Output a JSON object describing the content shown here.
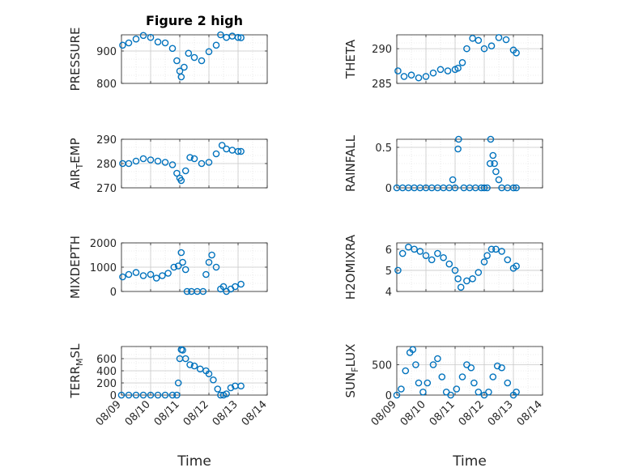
{
  "figure": {
    "title": "Figure 2 high",
    "xlabel": "Time",
    "xtick_labels": [
      "08/09",
      "08/10",
      "08/11",
      "08/12",
      "08/13",
      "08/14"
    ]
  },
  "colors": {
    "marker": "#0072bd",
    "axis": "#262626",
    "grid": "#dcdcdc"
  },
  "chart_data": [
    {
      "type": "scatter",
      "ylabel": "PRESSURE",
      "ylabel_sub": "",
      "xlim": [
        0,
        5
      ],
      "ylim": [
        800,
        950
      ],
      "yticks": [
        800,
        900
      ],
      "grid": true,
      "marker": "o",
      "x": [
        0.04,
        0.25,
        0.5,
        0.75,
        1.0,
        1.25,
        1.5,
        1.75,
        1.9,
        2.0,
        2.05,
        2.15,
        2.3,
        2.5,
        2.75,
        3.0,
        3.25,
        3.4,
        3.6,
        3.8,
        4.0,
        4.1
      ],
      "y": [
        918,
        925,
        937,
        948,
        942,
        928,
        925,
        908,
        870,
        838,
        820,
        850,
        893,
        880,
        870,
        898,
        918,
        950,
        942,
        946,
        942,
        941
      ]
    },
    {
      "type": "scatter",
      "ylabel": "THETA",
      "ylabel_sub": "",
      "xlim": [
        0,
        5
      ],
      "ylim": [
        285,
        292
      ],
      "yticks": [
        285,
        290
      ],
      "grid": true,
      "marker": "o",
      "x": [
        0.04,
        0.25,
        0.5,
        0.75,
        1.0,
        1.25,
        1.5,
        1.75,
        2.0,
        2.1,
        2.25,
        2.4,
        2.6,
        2.8,
        3.0,
        3.25,
        3.5,
        3.75,
        4.0,
        4.1
      ],
      "y": [
        286.8,
        286.0,
        286.2,
        285.8,
        286.0,
        286.5,
        287.0,
        286.8,
        287.0,
        287.2,
        288.0,
        290.0,
        291.5,
        291.2,
        290.0,
        290.4,
        291.6,
        291.3,
        289.8,
        289.4
      ]
    },
    {
      "type": "scatter",
      "ylabel": "AIR",
      "ylabel_sub": "T",
      "ylabel_suffix": "EMP",
      "xlim": [
        0,
        5
      ],
      "ylim": [
        270,
        290
      ],
      "yticks": [
        270,
        280,
        290
      ],
      "grid": true,
      "marker": "o",
      "x": [
        0.04,
        0.25,
        0.5,
        0.75,
        1.0,
        1.25,
        1.5,
        1.75,
        1.9,
        2.0,
        2.05,
        2.2,
        2.35,
        2.5,
        2.75,
        3.0,
        3.25,
        3.45,
        3.6,
        3.8,
        4.0,
        4.1
      ],
      "y": [
        280,
        280,
        281,
        282,
        281.5,
        281,
        280.5,
        279.5,
        276,
        274,
        273,
        277,
        282.5,
        282,
        280,
        280.5,
        284,
        287.5,
        286,
        285.5,
        285,
        285
      ]
    },
    {
      "type": "scatter",
      "ylabel": "RAINFALL",
      "ylabel_sub": "",
      "xlim": [
        0,
        5
      ],
      "ylim": [
        0,
        0.6
      ],
      "yticks": [
        0,
        0.5
      ],
      "grid": true,
      "marker": "o",
      "x": [
        0.0,
        0.2,
        0.4,
        0.6,
        0.8,
        1.0,
        1.2,
        1.4,
        1.6,
        1.8,
        1.92,
        2.0,
        2.1,
        2.12,
        2.3,
        2.5,
        2.7,
        2.9,
        3.0,
        3.1,
        3.2,
        3.22,
        3.3,
        3.35,
        3.4,
        3.5,
        3.6,
        3.8,
        4.0,
        4.1
      ],
      "y": [
        0,
        0,
        0,
        0,
        0,
        0,
        0,
        0,
        0,
        0,
        0.1,
        0,
        0.48,
        0.6,
        0,
        0,
        0,
        0,
        0,
        0,
        0.3,
        0.6,
        0.4,
        0.3,
        0.2,
        0.1,
        0,
        0,
        0,
        0
      ]
    },
    {
      "type": "scatter",
      "ylabel": "MIXDEPTH",
      "ylabel_sub": "",
      "xlim": [
        0,
        5
      ],
      "ylim": [
        0,
        2000
      ],
      "yticks": [
        0,
        1000,
        2000
      ],
      "grid": true,
      "marker": "o",
      "x": [
        0.04,
        0.25,
        0.5,
        0.75,
        1.0,
        1.2,
        1.4,
        1.6,
        1.8,
        1.95,
        2.05,
        2.1,
        2.2,
        2.25,
        2.4,
        2.6,
        2.8,
        2.9,
        3.0,
        3.1,
        3.25,
        3.4,
        3.5,
        3.6,
        3.75,
        3.9,
        4.1
      ],
      "y": [
        600,
        700,
        780,
        650,
        700,
        550,
        650,
        750,
        1000,
        1050,
        1600,
        1200,
        900,
        0,
        0,
        0,
        0,
        700,
        1200,
        1500,
        1000,
        100,
        200,
        0,
        100,
        200,
        300
      ]
    },
    {
      "type": "scatter",
      "ylabel": "H2OMIXRA",
      "ylabel_sub": "",
      "xlim": [
        0,
        5
      ],
      "ylim": [
        4,
        6.3
      ],
      "yticks": [
        4,
        5,
        6
      ],
      "grid": true,
      "marker": "o",
      "x": [
        0.04,
        0.2,
        0.4,
        0.6,
        0.8,
        1.0,
        1.2,
        1.4,
        1.6,
        1.8,
        2.0,
        2.1,
        2.2,
        2.4,
        2.6,
        2.8,
        3.0,
        3.1,
        3.25,
        3.4,
        3.6,
        3.8,
        4.0,
        4.1
      ],
      "y": [
        5.0,
        5.8,
        6.1,
        6.0,
        5.9,
        5.7,
        5.5,
        5.8,
        5.6,
        5.3,
        5.0,
        4.6,
        4.2,
        4.5,
        4.6,
        4.9,
        5.4,
        5.7,
        6.0,
        6.0,
        5.9,
        5.5,
        5.1,
        5.2
      ]
    },
    {
      "type": "scatter",
      "ylabel": "TERR",
      "ylabel_sub": "M",
      "ylabel_suffix": "SL",
      "xlim": [
        0,
        5
      ],
      "ylim": [
        0,
        800
      ],
      "yticks": [
        0,
        200,
        400,
        600
      ],
      "grid": true,
      "marker": "o",
      "x": [
        0.0,
        0.25,
        0.5,
        0.75,
        1.0,
        1.25,
        1.5,
        1.75,
        1.9,
        1.95,
        2.0,
        2.05,
        2.1,
        2.2,
        2.35,
        2.5,
        2.7,
        2.9,
        3.0,
        3.15,
        3.3,
        3.4,
        3.5,
        3.6,
        3.75,
        3.9,
        4.1
      ],
      "y": [
        0,
        0,
        0,
        0,
        0,
        0,
        0,
        0,
        0,
        200,
        600,
        750,
        740,
        600,
        500,
        480,
        430,
        400,
        350,
        250,
        100,
        0,
        0,
        20,
        120,
        150,
        150
      ]
    },
    {
      "type": "scatter",
      "ylabel": "SUN",
      "ylabel_sub": "F",
      "ylabel_suffix": "LUX",
      "xlim": [
        0,
        5
      ],
      "ylim": [
        0,
        800
      ],
      "yticks": [
        0,
        500
      ],
      "grid": true,
      "marker": "o",
      "x": [
        0.0,
        0.15,
        0.3,
        0.45,
        0.55,
        0.65,
        0.75,
        0.9,
        1.05,
        1.25,
        1.4,
        1.55,
        1.7,
        1.85,
        2.05,
        2.25,
        2.4,
        2.55,
        2.65,
        2.8,
        3.0,
        3.15,
        3.3,
        3.45,
        3.6,
        3.8,
        4.0,
        4.1
      ],
      "y": [
        0,
        100,
        400,
        700,
        750,
        500,
        200,
        50,
        200,
        500,
        600,
        300,
        50,
        0,
        100,
        300,
        500,
        450,
        200,
        50,
        0,
        50,
        300,
        480,
        450,
        200,
        0,
        50
      ]
    }
  ]
}
